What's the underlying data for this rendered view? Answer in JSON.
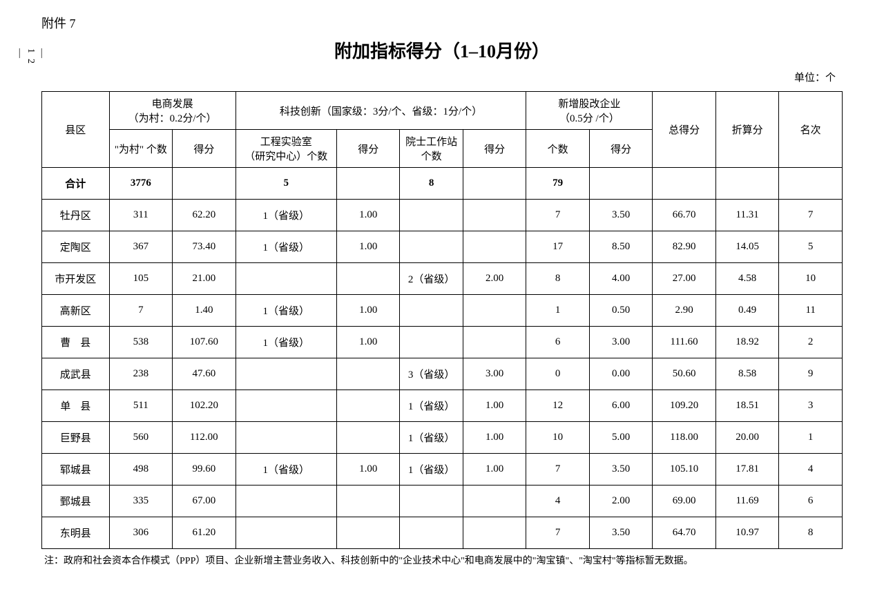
{
  "attachment_label": "附件 7",
  "page_number": "— 12 —",
  "title": "附加指标得分（1–10月份）",
  "unit": "单位：个",
  "header": {
    "county": "县区",
    "ecommerce": "电商发展\n（为村：0.2分/个）",
    "ecommerce_sub1": "\"为村\" 个数",
    "ecommerce_sub2": "得分",
    "tech": "科技创新（国家级：3分/个、省级：1分/个）",
    "tech_sub1": "工程实验室\n（研究中心）个数",
    "tech_sub2": "得分",
    "tech_sub3": "院士工作站\n个数",
    "tech_sub4": "得分",
    "stock": "新增股改企业\n（0.5分 /个）",
    "stock_sub1": "个数",
    "stock_sub2": "得分",
    "total_score": "总得分",
    "converted_score": "折算分",
    "rank": "名次"
  },
  "total_row": {
    "label": "合计",
    "village_count": "3776",
    "lab_count": "5",
    "station_count": "8",
    "enterprise_count": "79"
  },
  "rows": [
    {
      "county": "牡丹区",
      "village_count": "311",
      "village_score": "62.20",
      "lab": "1（省级）",
      "lab_score": "1.00",
      "station": "",
      "station_score": "",
      "ent_count": "7",
      "ent_score": "3.50",
      "total": "66.70",
      "converted": "11.31",
      "rank": "7"
    },
    {
      "county": "定陶区",
      "village_count": "367",
      "village_score": "73.40",
      "lab": "1（省级）",
      "lab_score": "1.00",
      "station": "",
      "station_score": "",
      "ent_count": "17",
      "ent_score": "8.50",
      "total": "82.90",
      "converted": "14.05",
      "rank": "5"
    },
    {
      "county": "市开发区",
      "village_count": "105",
      "village_score": "21.00",
      "lab": "",
      "lab_score": "",
      "station": "2（省级）",
      "station_score": "2.00",
      "ent_count": "8",
      "ent_score": "4.00",
      "total": "27.00",
      "converted": "4.58",
      "rank": "10"
    },
    {
      "county": "高新区",
      "village_count": "7",
      "village_score": "1.40",
      "lab": "1（省级）",
      "lab_score": "1.00",
      "station": "",
      "station_score": "",
      "ent_count": "1",
      "ent_score": "0.50",
      "total": "2.90",
      "converted": "0.49",
      "rank": "11"
    },
    {
      "county": "曹县",
      "spaced": true,
      "village_count": "538",
      "village_score": "107.60",
      "lab": "1（省级）",
      "lab_score": "1.00",
      "station": "",
      "station_score": "",
      "ent_count": "6",
      "ent_score": "3.00",
      "total": "111.60",
      "converted": "18.92",
      "rank": "2"
    },
    {
      "county": "成武县",
      "village_count": "238",
      "village_score": "47.60",
      "lab": "",
      "lab_score": "",
      "station": "3（省级）",
      "station_score": "3.00",
      "ent_count": "0",
      "ent_score": "0.00",
      "total": "50.60",
      "converted": "8.58",
      "rank": "9"
    },
    {
      "county": "单县",
      "spaced": true,
      "village_count": "511",
      "village_score": "102.20",
      "lab": "",
      "lab_score": "",
      "station": "1（省级）",
      "station_score": "1.00",
      "ent_count": "12",
      "ent_score": "6.00",
      "total": "109.20",
      "converted": "18.51",
      "rank": "3"
    },
    {
      "county": "巨野县",
      "village_count": "560",
      "village_score": "112.00",
      "lab": "",
      "lab_score": "",
      "station": "1（省级）",
      "station_score": "1.00",
      "ent_count": "10",
      "ent_score": "5.00",
      "total": "118.00",
      "converted": "20.00",
      "rank": "1"
    },
    {
      "county": "郓城县",
      "village_count": "498",
      "village_score": "99.60",
      "lab": "1（省级）",
      "lab_score": "1.00",
      "station": "1（省级）",
      "station_score": "1.00",
      "ent_count": "7",
      "ent_score": "3.50",
      "total": "105.10",
      "converted": "17.81",
      "rank": "4"
    },
    {
      "county": "鄄城县",
      "village_count": "335",
      "village_score": "67.00",
      "lab": "",
      "lab_score": "",
      "station": "",
      "station_score": "",
      "ent_count": "4",
      "ent_score": "2.00",
      "total": "69.00",
      "converted": "11.69",
      "rank": "6"
    },
    {
      "county": "东明县",
      "village_count": "306",
      "village_score": "61.20",
      "lab": "",
      "lab_score": "",
      "station": "",
      "station_score": "",
      "ent_count": "7",
      "ent_score": "3.50",
      "total": "64.70",
      "converted": "10.97",
      "rank": "8"
    }
  ],
  "footnote": "注：政府和社会资本合作模式（PPP）项目、企业新增主营业务收入、科技创新中的\"企业技术中心\"和电商发展中的\"淘宝镇\"、\"淘宝村\"等指标暂无数据。"
}
